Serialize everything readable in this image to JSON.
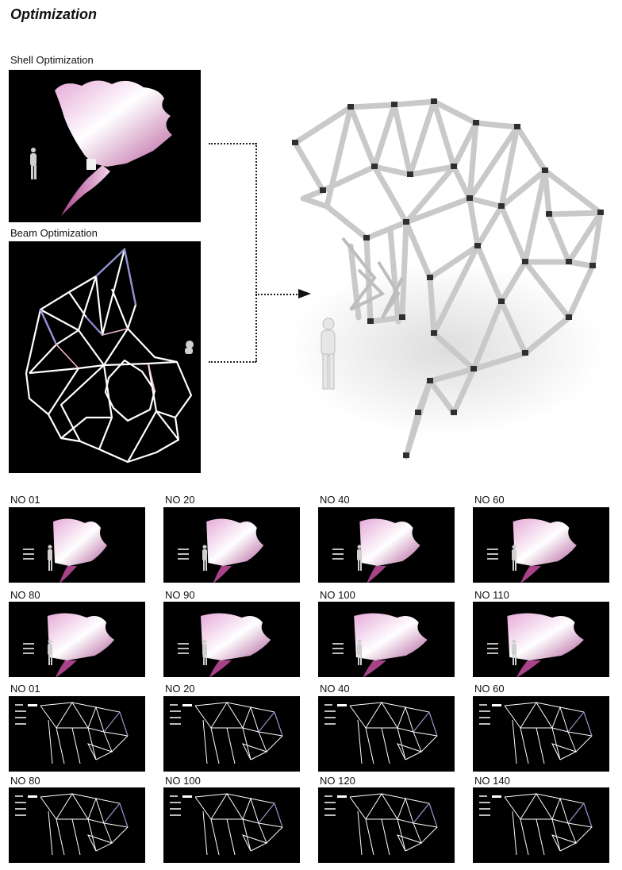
{
  "title": "Optimization",
  "shell_label": "Shell Optimization",
  "beam_label": "Beam Optimization",
  "shell_iterations": [
    "NO 01",
    "NO 20",
    "NO 40",
    "NO 60",
    "NO 80",
    "NO 90",
    "NO 100",
    "NO 110"
  ],
  "beam_iterations": [
    "NO 01",
    "NO 20",
    "NO 40",
    "NO 60",
    "NO 80",
    "NO 100",
    "NO 120",
    "NO 140"
  ],
  "colors": {
    "shell_pink": "#e6a9d8",
    "beam_violet": "#8f8fd6",
    "panel_bg": "#000000"
  }
}
